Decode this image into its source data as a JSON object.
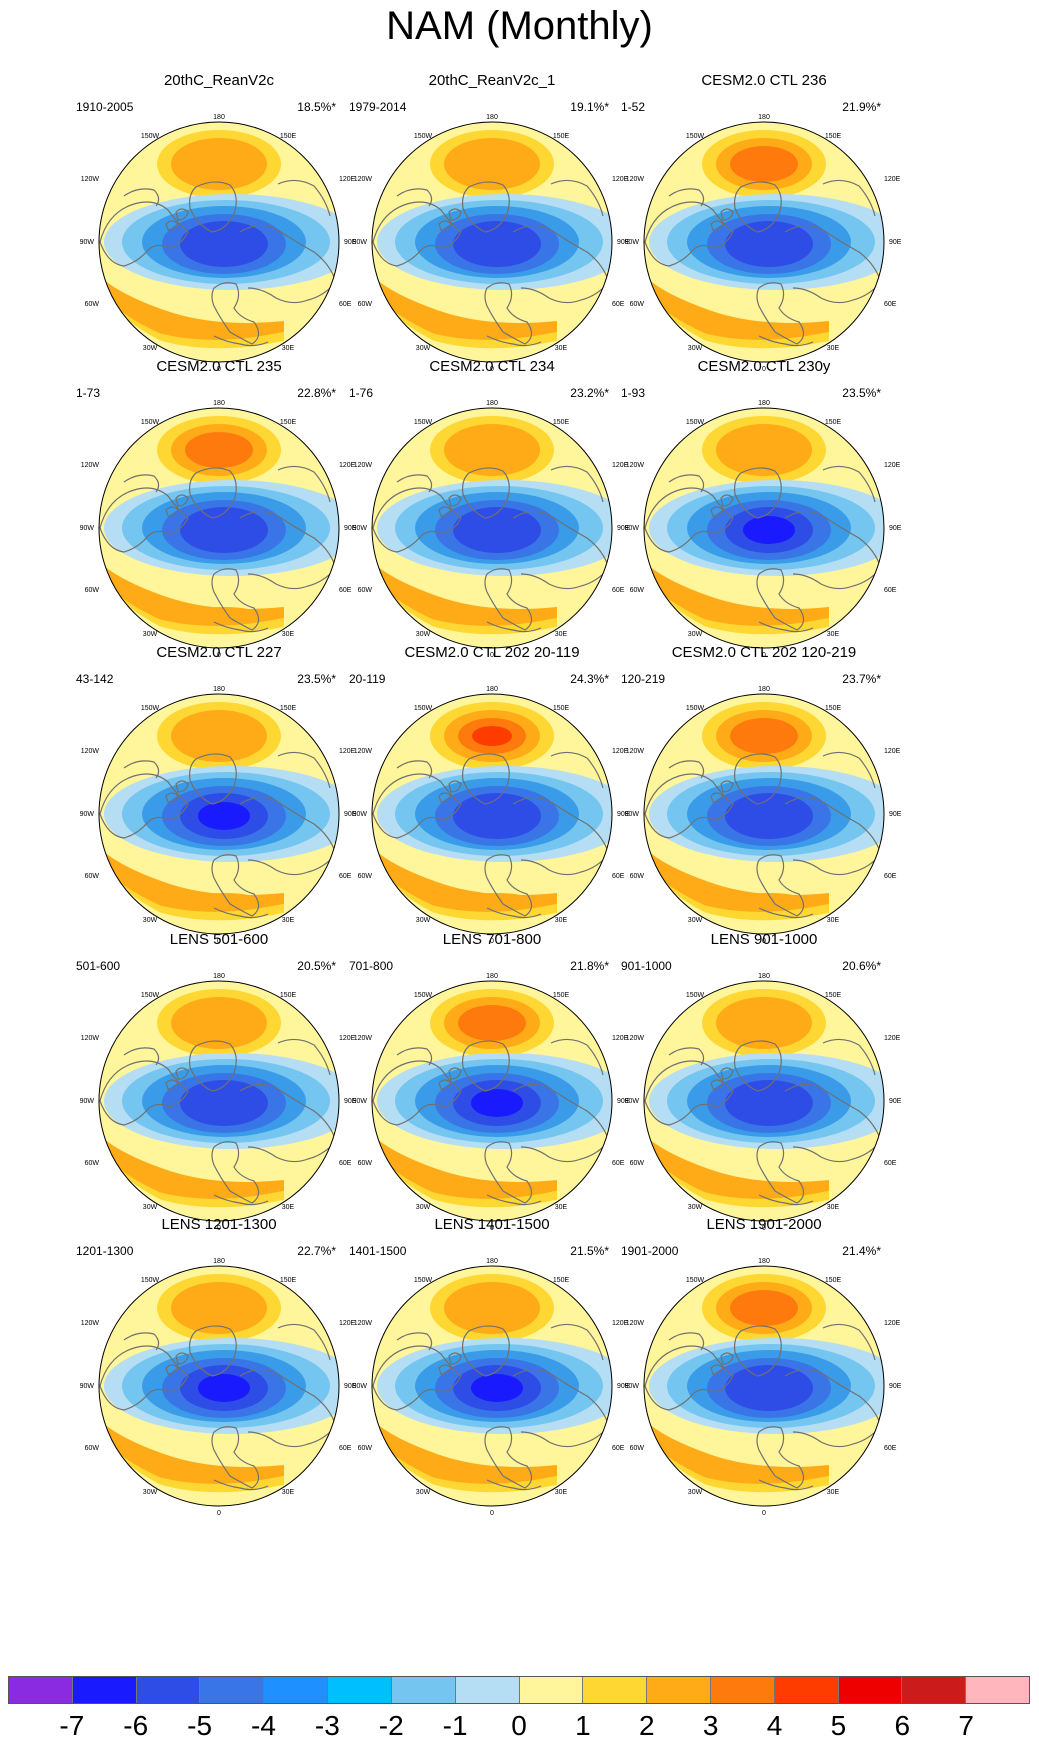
{
  "title": "NAM (Monthly)",
  "map_labels": {
    "top": "180",
    "upper_left": "150W",
    "upper_right": "150E",
    "mid_upper_left": "120W",
    "mid_upper_right": "120E",
    "left": "90W",
    "right": "90E",
    "mid_lower_left": "60W",
    "mid_lower_right": "60E",
    "lower_left": "30W",
    "lower_right": "30E",
    "bottom": "0"
  },
  "panels": [
    {
      "title": "20thC_ReanV2c",
      "range": "1910-2005",
      "variance": "18.5%*"
    },
    {
      "title": "20thC_ReanV2c_1",
      "range": "1979-2014",
      "variance": "19.1%*"
    },
    {
      "title": "CESM2.0 CTL 236",
      "range": "1-52",
      "variance": "21.9%*"
    },
    {
      "title": "CESM2.0 CTL 235",
      "range": "1-73",
      "variance": "22.8%*"
    },
    {
      "title": "CESM2.0 CTL 234",
      "range": "1-76",
      "variance": "23.2%*"
    },
    {
      "title": "CESM2.0 CTL 230y",
      "range": "1-93",
      "variance": "23.5%*"
    },
    {
      "title": "CESM2.0 CTL 227",
      "range": "43-142",
      "variance": "23.5%*"
    },
    {
      "title": "CESM2.0 CTL 202 20-119",
      "range": "20-119",
      "variance": "24.3%*"
    },
    {
      "title": "CESM2.0 CTL 202 120-219",
      "range": "120-219",
      "variance": "23.7%*"
    },
    {
      "title": "LENS 501-600",
      "range": "501-600",
      "variance": "20.5%*"
    },
    {
      "title": "LENS 701-800",
      "range": "701-800",
      "variance": "21.8%*"
    },
    {
      "title": "LENS 901-1000",
      "range": "901-1000",
      "variance": "20.6%*"
    },
    {
      "title": "LENS 1201-1300",
      "range": "1201-1300",
      "variance": "22.7%*"
    },
    {
      "title": "LENS 1401-1500",
      "range": "1401-1500",
      "variance": "21.5%*"
    },
    {
      "title": "LENS 1901-2000",
      "range": "1901-2000",
      "variance": "21.4%*"
    }
  ],
  "colorbar": {
    "labels": [
      "-7",
      "-6",
      "-5",
      "-4",
      "-3",
      "-2",
      "-1",
      "0",
      "1",
      "2",
      "3",
      "4",
      "5",
      "6",
      "7"
    ],
    "colors": [
      "#8a2be2",
      "#1a1aff",
      "#2e4de6",
      "#3a75e8",
      "#1e90ff",
      "#00bfff",
      "#74c6f0",
      "#b5def4",
      "#fff59a",
      "#ffd733",
      "#ffab18",
      "#ff7a0d",
      "#ff3c00",
      "#ee0000",
      "#cc1b1b",
      "#ffb6bc"
    ]
  },
  "map_colors": {
    "ocean": "#fff59a",
    "coast": "#707070",
    "neg": [
      "#b5def4",
      "#74c6f0",
      "#3a9be8",
      "#3a75e8",
      "#2e4de6",
      "#1a1aff"
    ],
    "pos": [
      "#ffd733",
      "#ffab18",
      "#ff7a0d",
      "#ff3c00"
    ]
  }
}
